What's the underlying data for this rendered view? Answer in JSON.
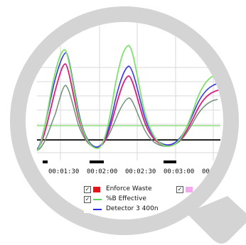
{
  "time_axis": {
    "ticks": [
      "00:01:30",
      "00:02:00",
      "00:02:30",
      "00:03:00",
      "00"
    ]
  },
  "legend": {
    "items": [
      {
        "label": "Enforce Waste",
        "checked": "✓",
        "swatch": "box",
        "color": "#e8141c"
      },
      {
        "label": "%B Effective",
        "checked": "✓",
        "swatch": "line",
        "color": "#5fd35f"
      },
      {
        "label": "Detector 3 400n",
        "checked": "",
        "swatch": "line",
        "color": "#2a2ae0"
      },
      {
        "label": "",
        "checked": "✓",
        "swatch": "box",
        "color": "#f5a8f0"
      }
    ]
  },
  "colors": {
    "green_trace": "#7ee36b",
    "blue_trace": "#3a3ae8",
    "magenta_trace": "#e0197a",
    "gray_trace": "#6f8f7a",
    "baseline": "#222222",
    "threshold_line": "#8fe07f",
    "ring": "#d4d4d4"
  }
}
